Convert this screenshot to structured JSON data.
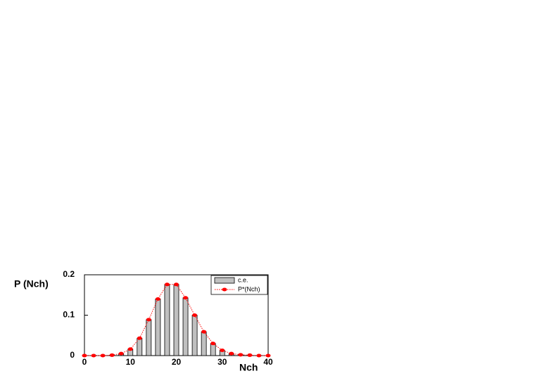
{
  "chart_data": {
    "type": "bar-line",
    "xlabel": "Nch",
    "ylabel": "P (Nch)",
    "x": [
      0,
      2,
      4,
      6,
      8,
      10,
      12,
      14,
      16,
      18,
      20,
      22,
      24,
      26,
      28,
      30,
      32,
      34,
      36,
      38,
      40
    ],
    "series": [
      {
        "name": "c.e.",
        "color": "#c0c0c0",
        "kind": "bar",
        "values": [
          0,
          0,
          0,
          0.001,
          0.005,
          0.016,
          0.043,
          0.089,
          0.14,
          0.176,
          0.176,
          0.143,
          0.1,
          0.059,
          0.03,
          0.013,
          0.005,
          0.002,
          0.001,
          0,
          0
        ]
      },
      {
        "name": "P*(Nch)",
        "color": "#ff0000",
        "kind": "line",
        "values": [
          0,
          0,
          0,
          0.001,
          0.005,
          0.016,
          0.043,
          0.089,
          0.14,
          0.176,
          0.176,
          0.143,
          0.1,
          0.059,
          0.03,
          0.013,
          0.005,
          0.002,
          0.001,
          0,
          0
        ]
      }
    ],
    "xlim": [
      0,
      40
    ],
    "xticks": [
      0,
      10,
      20,
      30,
      40
    ],
    "ylim": [
      0,
      0.2
    ],
    "yticks": [
      0,
      0.1,
      0.2
    ],
    "legend": "top-right"
  }
}
